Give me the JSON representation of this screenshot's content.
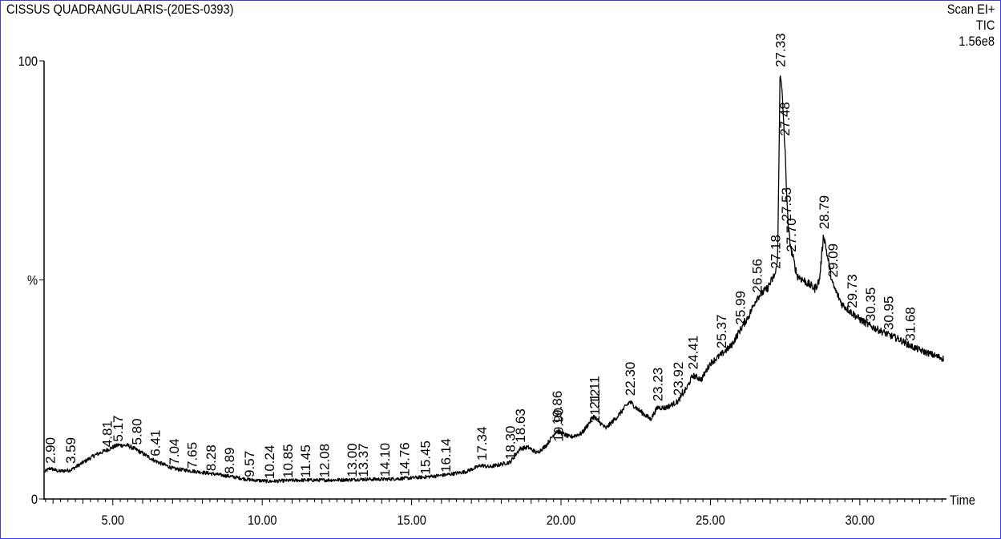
{
  "header": {
    "title": "CISSUS QUADRANGULARIS-(20ES-0393)",
    "scan_mode": "Scan  EI+",
    "trace": "TIC",
    "intensity_scale": "1.56e8"
  },
  "chart_data": {
    "type": "line",
    "ylabel": "%",
    "xlabel": "Time",
    "xlim": [
      2.7,
      32.9
    ],
    "ylim": [
      0,
      100
    ],
    "x_ticks": [
      "5.00",
      "10.00",
      "15.00",
      "20.00",
      "25.00",
      "30.00"
    ],
    "x_tick_values": [
      5,
      10,
      15,
      20,
      25,
      30
    ],
    "y_ticks": [
      "0",
      "%",
      "100"
    ],
    "y_tick_values": [
      0,
      50,
      100
    ],
    "grid": false,
    "series": [
      {
        "x": [
          2.72,
          2.9,
          3.2,
          3.59,
          4.0,
          4.4,
          4.81,
          5.17,
          5.5,
          5.8,
          6.1,
          6.41,
          7.04,
          7.65,
          8.28,
          8.89,
          9.57,
          10.24,
          10.85,
          11.45,
          12.08,
          13.0,
          13.37,
          14.1,
          14.76,
          15.45,
          16.14,
          16.8,
          17.34,
          17.6,
          18.3,
          18.63,
          18.9,
          19.2,
          19.5,
          19.86,
          19.9,
          20.3,
          20.7,
          21.11,
          21.12,
          21.5,
          21.9,
          22.3,
          22.6,
          23.0,
          23.23,
          23.5,
          23.92,
          24.2,
          24.41,
          24.7,
          25.0,
          25.37,
          25.7,
          25.99,
          26.3,
          26.56,
          26.9,
          27.18,
          27.25,
          27.3,
          27.33,
          27.4,
          27.48,
          27.53,
          27.6,
          27.7,
          27.9,
          28.2,
          28.5,
          28.65,
          28.79,
          28.9,
          29.09,
          29.4,
          29.73,
          30.0,
          30.35,
          30.95,
          31.3,
          31.68,
          32.0,
          32.4,
          32.8
        ],
        "y": [
          6.2,
          7.0,
          6.3,
          6.6,
          8.3,
          10.0,
          11.2,
          12.3,
          12.2,
          11.2,
          10.0,
          8.7,
          6.9,
          6.4,
          5.8,
          5.2,
          4.4,
          4.0,
          4.2,
          4.3,
          4.3,
          4.4,
          4.5,
          4.5,
          4.7,
          5.0,
          5.5,
          6.2,
          7.7,
          7.3,
          8.4,
          11.5,
          11.8,
          10.5,
          12.2,
          15.7,
          15.4,
          14.1,
          15.0,
          19.0,
          18.7,
          16.1,
          18.9,
          22.2,
          20.3,
          18.2,
          20.9,
          20.8,
          22.3,
          25.2,
          28.2,
          27.3,
          31.0,
          33.0,
          35.0,
          38.5,
          42.0,
          46.0,
          48.0,
          51.5,
          55.0,
          80.0,
          97.5,
          93.0,
          82.0,
          74.0,
          62.0,
          57.0,
          51.0,
          49.5,
          48.0,
          50.0,
          60.5,
          56.0,
          49.0,
          44.5,
          42.5,
          41.0,
          39.5,
          37.5,
          36.5,
          35.0,
          34.0,
          33.0,
          32.0
        ]
      }
    ],
    "peak_labels": [
      {
        "rt": "2.90",
        "x": 2.9,
        "y": 7.5
      },
      {
        "rt": "3.59",
        "x": 3.59,
        "y": 7.5
      },
      {
        "rt": "4.81",
        "x": 4.81,
        "y": 11.3
      },
      {
        "rt": "5.17",
        "x": 5.17,
        "y": 12.5
      },
      {
        "rt": "5.80",
        "x": 5.8,
        "y": 11.8
      },
      {
        "rt": "6.41",
        "x": 6.41,
        "y": 9.2
      },
      {
        "rt": "7.04",
        "x": 7.04,
        "y": 7.2
      },
      {
        "rt": "7.65",
        "x": 7.65,
        "y": 6.4
      },
      {
        "rt": "8.28",
        "x": 8.28,
        "y": 5.8
      },
      {
        "rt": "8.89",
        "x": 8.89,
        "y": 5.2
      },
      {
        "rt": "9.57",
        "x": 9.57,
        "y": 4.4
      },
      {
        "rt": "10.24",
        "x": 10.24,
        "y": 4.0
      },
      {
        "rt": "10.85",
        "x": 10.85,
        "y": 4.2
      },
      {
        "rt": "11.45",
        "x": 11.45,
        "y": 4.3
      },
      {
        "rt": "12.08",
        "x": 12.08,
        "y": 4.3
      },
      {
        "rt": "13.00",
        "x": 13.0,
        "y": 4.4
      },
      {
        "rt": "13.37",
        "x": 13.37,
        "y": 4.4
      },
      {
        "rt": "14.10",
        "x": 14.1,
        "y": 4.5
      },
      {
        "rt": "14.76",
        "x": 14.76,
        "y": 4.6
      },
      {
        "rt": "15.45",
        "x": 15.45,
        "y": 5.0
      },
      {
        "rt": "16.14",
        "x": 16.14,
        "y": 5.5
      },
      {
        "rt": "17.34",
        "x": 17.34,
        "y": 8.2
      },
      {
        "rt": "18.30",
        "x": 18.3,
        "y": 8.4
      },
      {
        "rt": "18.63",
        "x": 18.63,
        "y": 12.3
      },
      {
        "rt": "19.86",
        "x": 19.86,
        "y": 16.4
      },
      {
        "rt": "19.90",
        "x": 19.9,
        "y": 12.5
      },
      {
        "rt": "21.11",
        "x": 21.11,
        "y": 20.0
      },
      {
        "rt": "21.12",
        "x": 21.12,
        "y": 16.8
      },
      {
        "rt": "22.30",
        "x": 22.3,
        "y": 23.0
      },
      {
        "rt": "23.23",
        "x": 23.23,
        "y": 21.7
      },
      {
        "rt": "23.92",
        "x": 23.92,
        "y": 23.0
      },
      {
        "rt": "24.41",
        "x": 24.41,
        "y": 29.0
      },
      {
        "rt": "25.37",
        "x": 25.37,
        "y": 33.8
      },
      {
        "rt": "25.99",
        "x": 25.99,
        "y": 39.2
      },
      {
        "rt": "26.56",
        "x": 26.56,
        "y": 46.5
      },
      {
        "rt": "27.18",
        "x": 27.18,
        "y": 52.0
      },
      {
        "rt": "27.33",
        "x": 27.33,
        "y": 98.0
      },
      {
        "rt": "27.48",
        "x": 27.48,
        "y": 82.3
      },
      {
        "rt": "27.53",
        "x": 27.53,
        "y": 62.8
      },
      {
        "rt": "27.70",
        "x": 27.7,
        "y": 55.8
      },
      {
        "rt": "28.79",
        "x": 28.79,
        "y": 61.0
      },
      {
        "rt": "29.09",
        "x": 29.09,
        "y": 50.0
      },
      {
        "rt": "29.73",
        "x": 29.73,
        "y": 43.0
      },
      {
        "rt": "30.35",
        "x": 30.35,
        "y": 40.0
      },
      {
        "rt": "30.95",
        "x": 30.95,
        "y": 38.0
      },
      {
        "rt": "31.68",
        "x": 31.68,
        "y": 35.5
      }
    ]
  }
}
